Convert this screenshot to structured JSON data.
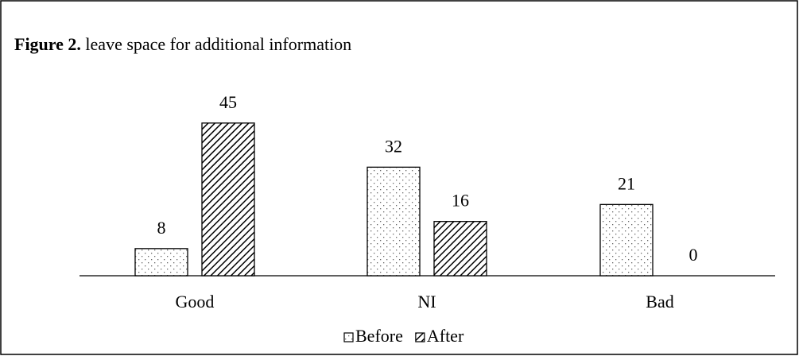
{
  "chart_data": {
    "type": "bar",
    "title_label": "Figure 2.",
    "title": "leave space for additional information",
    "categories": [
      "Good",
      "NI",
      "Bad"
    ],
    "series": [
      {
        "name": "Before",
        "color": "#000000",
        "values": [
          8,
          32,
          21
        ]
      },
      {
        "name": "After",
        "color": "#000000",
        "values": [
          45,
          16,
          0
        ]
      }
    ]
  }
}
